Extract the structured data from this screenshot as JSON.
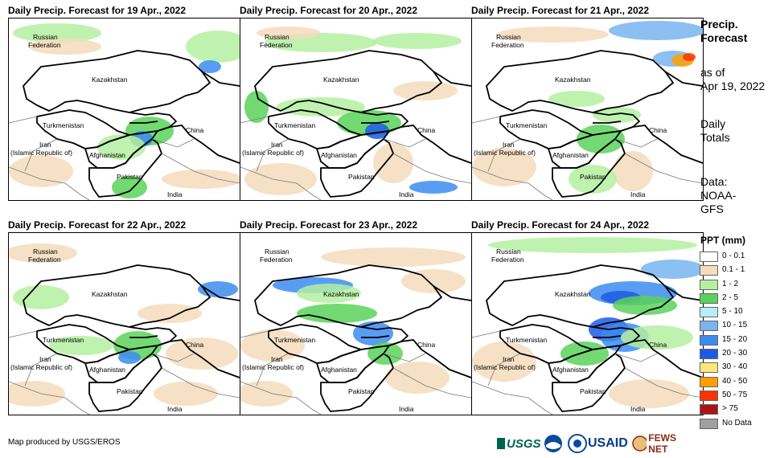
{
  "panels": [
    {
      "title": "Daily Precip. Forecast for 19 Apr., 2022"
    },
    {
      "title": "Daily Precip. Forecast for 20 Apr., 2022"
    },
    {
      "title": "Daily Precip. Forecast for 21 Apr., 2022"
    },
    {
      "title": "Daily Precip. Forecast for 22 Apr., 2022"
    },
    {
      "title": "Daily Precip. Forecast for 23 Apr., 2022"
    },
    {
      "title": "Daily Precip. Forecast for 24 Apr., 2022"
    }
  ],
  "map_labels": {
    "russia_1": "Russian",
    "russia_2": "Federation",
    "kazakhstan": "Kazakhstan",
    "turkmenistan": "Turkmenistan",
    "iran_1": "Iran",
    "iran_2": "(Islamic Republic of)",
    "afghanistan": "Afghanistan",
    "pakistan": "Pakistan",
    "china": "China",
    "india": "India"
  },
  "sidebar": {
    "title_1": "Precip.",
    "title_2": "Forecast",
    "asof_1": "as of",
    "asof_2": "Apr 19, 2022",
    "totals_1": "Daily",
    "totals_2": "Totals",
    "data_1": "Data:",
    "data_2": "NOAA-",
    "data_3": "GFS"
  },
  "legend": {
    "title": "PPT (mm)",
    "items": [
      {
        "label": "0 - 0.1",
        "color": "#ffffff"
      },
      {
        "label": "0.1 - 1",
        "color": "#f5dcbc"
      },
      {
        "label": "1 - 2",
        "color": "#b4f0a0"
      },
      {
        "label": "2 - 5",
        "color": "#5ad25a"
      },
      {
        "label": "5 - 10",
        "color": "#b4f0fa"
      },
      {
        "label": "10 - 15",
        "color": "#78b4f0"
      },
      {
        "label": "15 - 20",
        "color": "#3c8cf0"
      },
      {
        "label": "20 - 30",
        "color": "#1e5ae6"
      },
      {
        "label": "30 - 40",
        "color": "#ffe678"
      },
      {
        "label": "40 - 50",
        "color": "#ffa000"
      },
      {
        "label": "50 - 75",
        "color": "#ff3200"
      },
      {
        "label": "> 75",
        "color": "#aa1414"
      },
      {
        "label": "No Data",
        "color": "#a0a0a0"
      }
    ]
  },
  "footer": {
    "credit": "Map produced by USGS/EROS"
  },
  "logos": {
    "usgs": "USGS",
    "usaid": "USAID",
    "fewsnet": "FEWS NET"
  }
}
